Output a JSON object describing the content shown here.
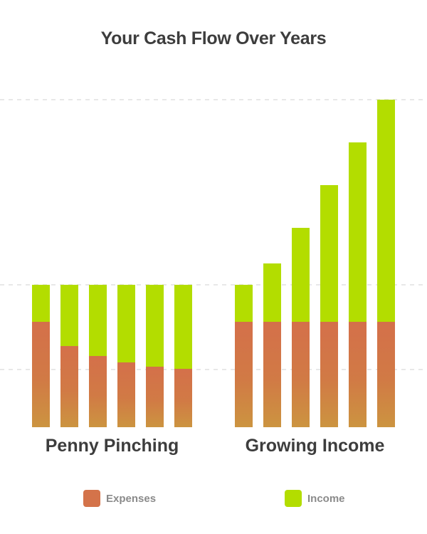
{
  "chart_data": {
    "type": "bar",
    "stacked": true,
    "title": "Your Cash Flow Over Years",
    "xlabel": "",
    "ylabel": "",
    "ylim": [
      0,
      460
    ],
    "grid": true,
    "legend_position": "bottom",
    "groups": [
      {
        "label": "Penny Pinching",
        "expenses": [
          148,
          114,
          100,
          91,
          85,
          82
        ],
        "income": [
          52,
          86,
          100,
          109,
          115,
          118
        ]
      },
      {
        "label": "Growing Income",
        "expenses": [
          148,
          148,
          148,
          148,
          148,
          148
        ],
        "income": [
          52,
          82,
          132,
          192,
          252,
          312
        ]
      }
    ],
    "series": [
      {
        "name": "Expenses",
        "color": "#d4734a"
      },
      {
        "name": "Income",
        "color": "#b3dd00"
      }
    ]
  }
}
